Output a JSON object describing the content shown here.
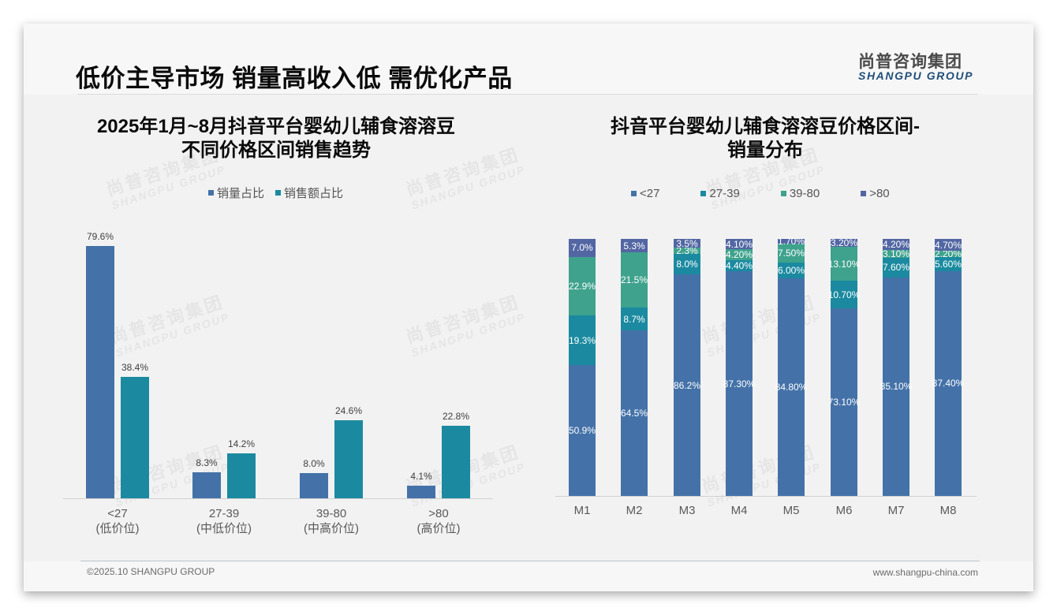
{
  "header": {
    "title": "低价主导市场 销量高收入低 需优化产品",
    "logo_cn": "尚普咨询集团",
    "logo_en": "SHANGPU GROUP"
  },
  "watermark": {
    "cn": "尚普咨询集团",
    "en": "SHANGPU GROUP"
  },
  "left_chart": {
    "title_line1": "2025年1月~8月抖音平台婴幼儿辅食溶溶豆",
    "title_line2": "不同价格区间销售趋势",
    "legend": [
      {
        "label": "销量占比",
        "color": "#4472a8"
      },
      {
        "label": "销售额占比",
        "color": "#1b8aa0"
      }
    ],
    "categories": [
      {
        "label": "<27",
        "sub": "(低价位)",
        "volume": "79.6%",
        "sales": "38.4%"
      },
      {
        "label": "27-39",
        "sub": "(中低价位)",
        "volume": "8.3%",
        "sales": "14.2%"
      },
      {
        "label": "39-80",
        "sub": "(中高价位)",
        "volume": "8.0%",
        "sales": "24.6%"
      },
      {
        "label": ">80",
        "sub": "(高价位)",
        "volume": "4.1%",
        "sales": "22.8%"
      }
    ]
  },
  "right_chart": {
    "title_line1": "抖音平台婴幼儿辅食溶溶豆价格区间-",
    "title_line2": "销量分布",
    "legend": [
      {
        "label": "<27",
        "color": "#4472a8"
      },
      {
        "label": "27-39",
        "color": "#1b8aa0"
      },
      {
        "label": "39-80",
        "color": "#3fa28d"
      },
      {
        "label": ">80",
        "color": "#5266a3"
      }
    ],
    "months": [
      {
        "label": "M1",
        "values": [
          "50.9%",
          "19.3%",
          "22.9%",
          "7.0%"
        ]
      },
      {
        "label": "M2",
        "values": [
          "64.5%",
          "8.7%",
          "21.5%",
          "5.3%"
        ]
      },
      {
        "label": "M3",
        "values": [
          "86.2%",
          "8.0%",
          "2.3%",
          "3.5%"
        ]
      },
      {
        "label": "M4",
        "values": [
          "87.30%",
          "4.40%",
          "4.20%",
          "4.10%"
        ]
      },
      {
        "label": "M5",
        "values": [
          "84.80%",
          "6.00%",
          "7.50%",
          "1.70%"
        ]
      },
      {
        "label": "M6",
        "values": [
          "73.10%",
          "10.70%",
          "13.10%",
          "3.20%"
        ]
      },
      {
        "label": "M7",
        "values": [
          "85.10%",
          "7.60%",
          "3.10%",
          "4.20%"
        ]
      },
      {
        "label": "M8",
        "values": [
          "87.40%",
          "5.60%",
          "2.20%",
          "4.70%"
        ]
      }
    ]
  },
  "footer": {
    "copyright": "©2025.10 SHANGPU GROUP",
    "website": "www.shangpu-china.com"
  },
  "chart_data": [
    {
      "type": "bar",
      "title": "2025年1月~8月抖音平台婴幼儿辅食溶溶豆不同价格区间销售趋势",
      "categories": [
        "<27 (低价位)",
        "27-39 (中低价位)",
        "39-80 (中高价位)",
        ">80 (高价位)"
      ],
      "series": [
        {
          "name": "销量占比",
          "values": [
            79.6,
            8.3,
            8.0,
            4.1
          ]
        },
        {
          "name": "销售额占比",
          "values": [
            38.4,
            14.2,
            24.6,
            22.8
          ]
        }
      ],
      "xlabel": "",
      "ylabel": "",
      "unit": "%",
      "legend_position": "top",
      "grid": false
    },
    {
      "type": "bar",
      "stacked": true,
      "percent_stacked": true,
      "title": "抖音平台婴幼儿辅食溶溶豆价格区间-销量分布",
      "categories": [
        "M1",
        "M2",
        "M3",
        "M4",
        "M5",
        "M6",
        "M7",
        "M8"
      ],
      "series": [
        {
          "name": "<27",
          "values": [
            50.9,
            64.5,
            86.2,
            87.3,
            84.8,
            73.1,
            85.1,
            87.4
          ]
        },
        {
          "name": "27-39",
          "values": [
            19.3,
            8.7,
            8.0,
            4.4,
            6.0,
            10.7,
            7.6,
            5.6
          ]
        },
        {
          "name": "39-80",
          "values": [
            22.9,
            21.5,
            2.3,
            4.2,
            7.5,
            13.1,
            3.1,
            2.2
          ]
        },
        {
          "name": ">80",
          "values": [
            7.0,
            5.3,
            3.5,
            4.1,
            1.7,
            3.2,
            4.2,
            4.7
          ]
        }
      ],
      "xlabel": "",
      "ylabel": "",
      "unit": "%",
      "legend_position": "top",
      "grid": false
    }
  ]
}
